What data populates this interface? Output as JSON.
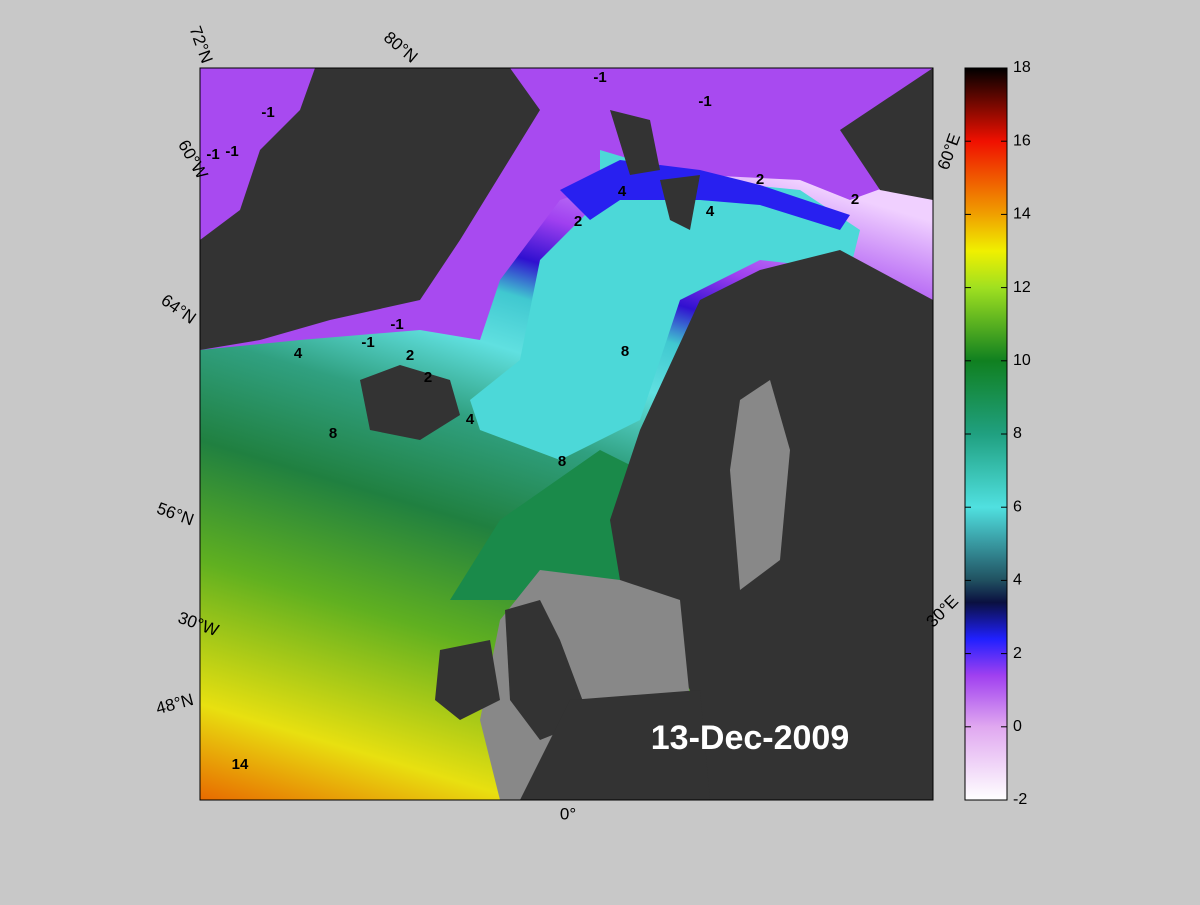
{
  "date": "13-Dec-2009",
  "graticule_labels": [
    "72°N",
    "80°N",
    "60°W",
    "64°N",
    "56°N",
    "30°W",
    "48°N",
    "0°",
    "30°E",
    "60°E"
  ],
  "contour_labels": [
    -1,
    -1,
    -1,
    -1,
    -1,
    -1,
    -1,
    4,
    2,
    2,
    2,
    4,
    4,
    2,
    2,
    4,
    8,
    8,
    8,
    14
  ],
  "colorbar": {
    "lim": [
      -2,
      18
    ],
    "ticks": [
      -2,
      0,
      2,
      4,
      6,
      8,
      10,
      12,
      14,
      16,
      18
    ]
  }
}
